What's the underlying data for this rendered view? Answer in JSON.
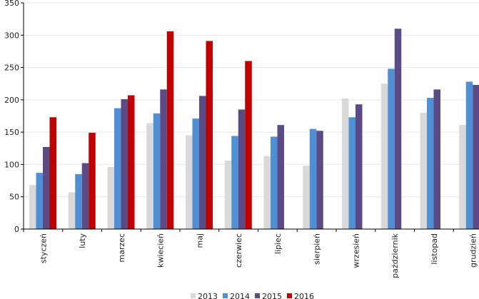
{
  "chart_data": {
    "type": "bar",
    "title": "",
    "xlabel": "",
    "ylabel": "",
    "ylim": [
      0,
      350
    ],
    "yticks": [
      0,
      50,
      100,
      150,
      200,
      250,
      300,
      350
    ],
    "grid": true,
    "legend_position": "bottom",
    "categories": [
      "styczeń",
      "luty",
      "marzec",
      "kwiecień",
      "maj",
      "czerwiec",
      "lipiec",
      "sierpień",
      "wrzesień",
      "październik",
      "listopad",
      "grudzień"
    ],
    "series": [
      {
        "name": "2013",
        "color": "#d9d9d9",
        "values": [
          68,
          57,
          96,
          164,
          145,
          106,
          113,
          98,
          202,
          225,
          180,
          161
        ]
      },
      {
        "name": "2014",
        "color": "#4f8fd6",
        "values": [
          87,
          85,
          187,
          179,
          171,
          144,
          143,
          155,
          173,
          248,
          203,
          228
        ]
      },
      {
        "name": "2015",
        "color": "#5c4a84",
        "values": [
          127,
          102,
          201,
          216,
          206,
          185,
          161,
          152,
          193,
          310,
          216,
          223
        ]
      },
      {
        "name": "2016",
        "color": "#c00000",
        "values": [
          173,
          149,
          207,
          306,
          291,
          260,
          null,
          null,
          null,
          null,
          null,
          null
        ]
      }
    ]
  }
}
